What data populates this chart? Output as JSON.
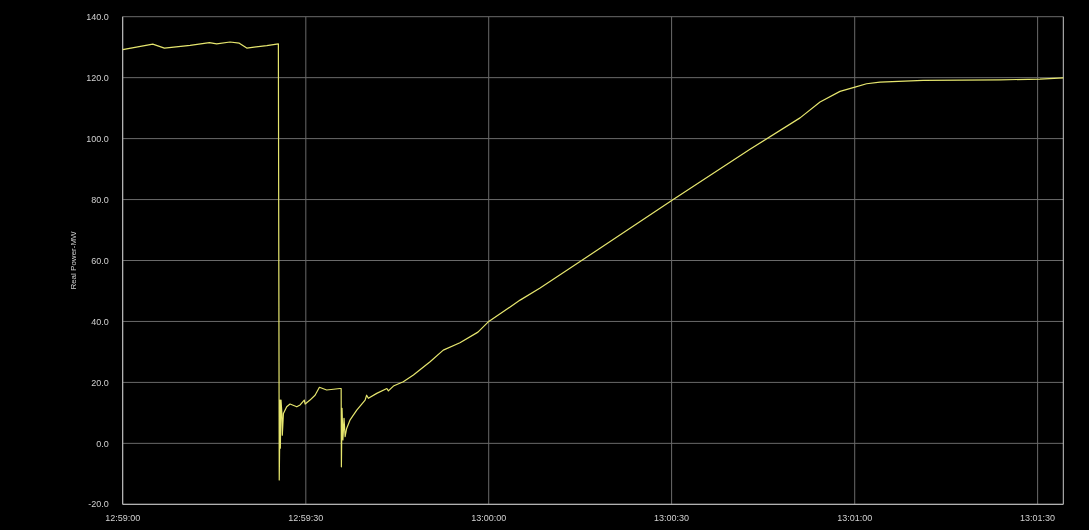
{
  "chart_data": {
    "type": "line",
    "ylabel": "Real Power-MW",
    "xlim": [
      12.98333,
      13.02617
    ],
    "xticks": [
      {
        "value": 12.98333,
        "label": "12:59:00"
      },
      {
        "value": 12.99167,
        "label": "12:59:30"
      },
      {
        "value": 13.0,
        "label": "13:00:00"
      },
      {
        "value": 13.00833,
        "label": "13:00:30"
      },
      {
        "value": 13.01667,
        "label": "13:01:00"
      },
      {
        "value": 13.025,
        "label": "13:01:30"
      }
    ],
    "ylim": [
      -20,
      140
    ],
    "yticks": [
      {
        "value": -20,
        "label": "-20.0"
      },
      {
        "value": 0,
        "label": "0.0"
      },
      {
        "value": 20,
        "label": "20.0"
      },
      {
        "value": 40,
        "label": "40.0"
      },
      {
        "value": 60,
        "label": "60.0"
      },
      {
        "value": 80,
        "label": "80.0"
      },
      {
        "value": 100,
        "label": "100.0"
      },
      {
        "value": 120,
        "label": "120.0"
      },
      {
        "value": 140,
        "label": "140.0"
      }
    ],
    "grid": true,
    "marker": "none",
    "line_style": "solid",
    "series": [
      {
        "color": "#e6e66e",
        "x": [
          12.98333,
          12.9847,
          12.98523,
          12.9864,
          12.98728,
          12.98761,
          12.98822,
          12.98864,
          12.98898,
          12.98989,
          12.99042,
          12.99046,
          12.9905,
          12.99051,
          12.99054,
          12.99058,
          12.9906,
          12.99065,
          12.9908,
          12.99095,
          12.99126,
          12.99141,
          12.9916,
          12.99164,
          12.99186,
          12.99209,
          12.99229,
          12.99262,
          12.99323,
          12.99328,
          12.99329,
          12.99332,
          12.99336,
          12.99341,
          12.99346,
          12.99353,
          12.99368,
          12.99399,
          12.99437,
          12.99444,
          12.99452,
          12.9949,
          12.99536,
          12.99543,
          12.99566,
          12.99611,
          12.99657,
          12.99733,
          12.99793,
          12.99869,
          12.99951,
          12.99997,
          13.00143,
          13.00234,
          13.00507,
          13.0083,
          13.0119,
          13.01418,
          13.01509,
          13.016,
          13.01668,
          13.01721,
          13.01782,
          13.01979,
          13.02328,
          13.02511,
          13.02617
        ],
        "values": [
          129.2,
          131.0,
          129.7,
          130.6,
          131.5,
          131.1,
          131.7,
          131.3,
          129.7,
          130.5,
          131.1,
          -12.0,
          14.2,
          -1.6,
          14.2,
          9.8,
          2.7,
          9.8,
          12.0,
          12.9,
          12.0,
          12.6,
          14.2,
          12.9,
          14.2,
          15.8,
          18.4,
          17.5,
          18.0,
          18.0,
          -7.7,
          11.5,
          1.1,
          8.2,
          2.2,
          4.9,
          7.6,
          10.9,
          14.2,
          15.8,
          14.8,
          16.4,
          18.0,
          17.2,
          18.8,
          20.2,
          22.4,
          26.8,
          30.6,
          33.0,
          36.5,
          39.8,
          47.0,
          51.0,
          64.0,
          79.5,
          96.5,
          106.8,
          112.0,
          115.5,
          116.9,
          118.0,
          118.5,
          119.1,
          119.3,
          119.5,
          119.9
        ]
      }
    ]
  }
}
